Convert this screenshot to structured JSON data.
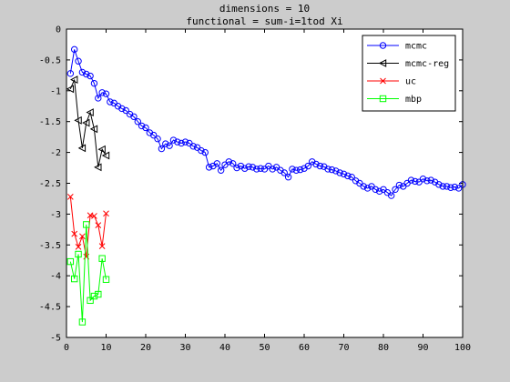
{
  "chart_data": {
    "type": "line",
    "title_lines": [
      "dimensions = 10",
      "functional = sum-i=1tod Xi"
    ],
    "xlim": [
      0,
      100
    ],
    "ylim": [
      -5,
      0
    ],
    "xticks": [
      0,
      10,
      20,
      30,
      40,
      50,
      60,
      70,
      80,
      90,
      100
    ],
    "yticks": [
      0,
      -0.5,
      -1,
      -1.5,
      -2,
      -2.5,
      -3,
      -3.5,
      -4,
      -4.5,
      -5
    ],
    "grid": false,
    "legend_position": "top-right",
    "series": [
      {
        "name": "mcmc",
        "color": "#0000ff",
        "marker": "circle",
        "x": [
          1,
          2,
          3,
          4,
          5,
          6,
          7,
          8,
          9,
          10,
          11,
          12,
          13,
          14,
          15,
          16,
          17,
          18,
          19,
          20,
          21,
          22,
          23,
          24,
          25,
          26,
          27,
          28,
          29,
          30,
          31,
          32,
          33,
          34,
          35,
          36,
          37,
          38,
          39,
          40,
          41,
          42,
          43,
          44,
          45,
          46,
          47,
          48,
          49,
          50,
          51,
          52,
          53,
          54,
          55,
          56,
          57,
          58,
          59,
          60,
          61,
          62,
          63,
          64,
          65,
          66,
          67,
          68,
          69,
          70,
          71,
          72,
          73,
          74,
          75,
          76,
          77,
          78,
          79,
          80,
          81,
          82,
          83,
          84,
          85,
          86,
          87,
          88,
          89,
          90,
          91,
          92,
          93,
          94,
          95,
          96,
          97,
          98,
          99,
          100
        ],
        "y": [
          -0.72,
          -0.33,
          -0.52,
          -0.7,
          -0.73,
          -0.76,
          -0.88,
          -1.12,
          -1.03,
          -1.05,
          -1.18,
          -1.2,
          -1.25,
          -1.29,
          -1.32,
          -1.38,
          -1.42,
          -1.5,
          -1.57,
          -1.6,
          -1.68,
          -1.72,
          -1.78,
          -1.94,
          -1.86,
          -1.89,
          -1.8,
          -1.83,
          -1.85,
          -1.83,
          -1.85,
          -1.9,
          -1.92,
          -1.97,
          -2.0,
          -2.24,
          -2.22,
          -2.18,
          -2.29,
          -2.2,
          -2.15,
          -2.18,
          -2.25,
          -2.22,
          -2.26,
          -2.23,
          -2.24,
          -2.27,
          -2.26,
          -2.27,
          -2.22,
          -2.27,
          -2.24,
          -2.29,
          -2.33,
          -2.4,
          -2.27,
          -2.29,
          -2.28,
          -2.26,
          -2.22,
          -2.15,
          -2.19,
          -2.22,
          -2.23,
          -2.27,
          -2.28,
          -2.3,
          -2.33,
          -2.35,
          -2.38,
          -2.4,
          -2.46,
          -2.5,
          -2.55,
          -2.58,
          -2.55,
          -2.6,
          -2.63,
          -2.6,
          -2.65,
          -2.7,
          -2.6,
          -2.53,
          -2.55,
          -2.5,
          -2.45,
          -2.47,
          -2.48,
          -2.43,
          -2.46,
          -2.45,
          -2.48,
          -2.52,
          -2.55,
          -2.55,
          -2.57,
          -2.56,
          -2.58,
          -2.52
        ]
      },
      {
        "name": "mcmc-reg",
        "color": "#000000",
        "marker": "triangle-left",
        "x": [
          1,
          2,
          3,
          4,
          5,
          6,
          7,
          8,
          9,
          10
        ],
        "y": [
          -0.97,
          -0.82,
          -1.48,
          -1.93,
          -1.52,
          -1.35,
          -1.62,
          -2.24,
          -1.95,
          -2.05
        ]
      },
      {
        "name": "uc",
        "color": "#ff0000",
        "marker": "x",
        "x": [
          1,
          2,
          3,
          4,
          5,
          6,
          7,
          8,
          9,
          10
        ],
        "y": [
          -2.72,
          -3.32,
          -3.53,
          -3.36,
          -3.69,
          -3.02,
          -3.03,
          -3.18,
          -3.52,
          -2.99
        ]
      },
      {
        "name": "mbp",
        "color": "#00ff00",
        "marker": "square",
        "x": [
          1,
          2,
          3,
          4,
          5,
          6,
          7,
          8,
          9,
          10
        ],
        "y": [
          -3.77,
          -4.05,
          -3.65,
          -4.75,
          -3.17,
          -4.4,
          -4.33,
          -4.3,
          -3.72,
          -4.06
        ]
      }
    ]
  }
}
